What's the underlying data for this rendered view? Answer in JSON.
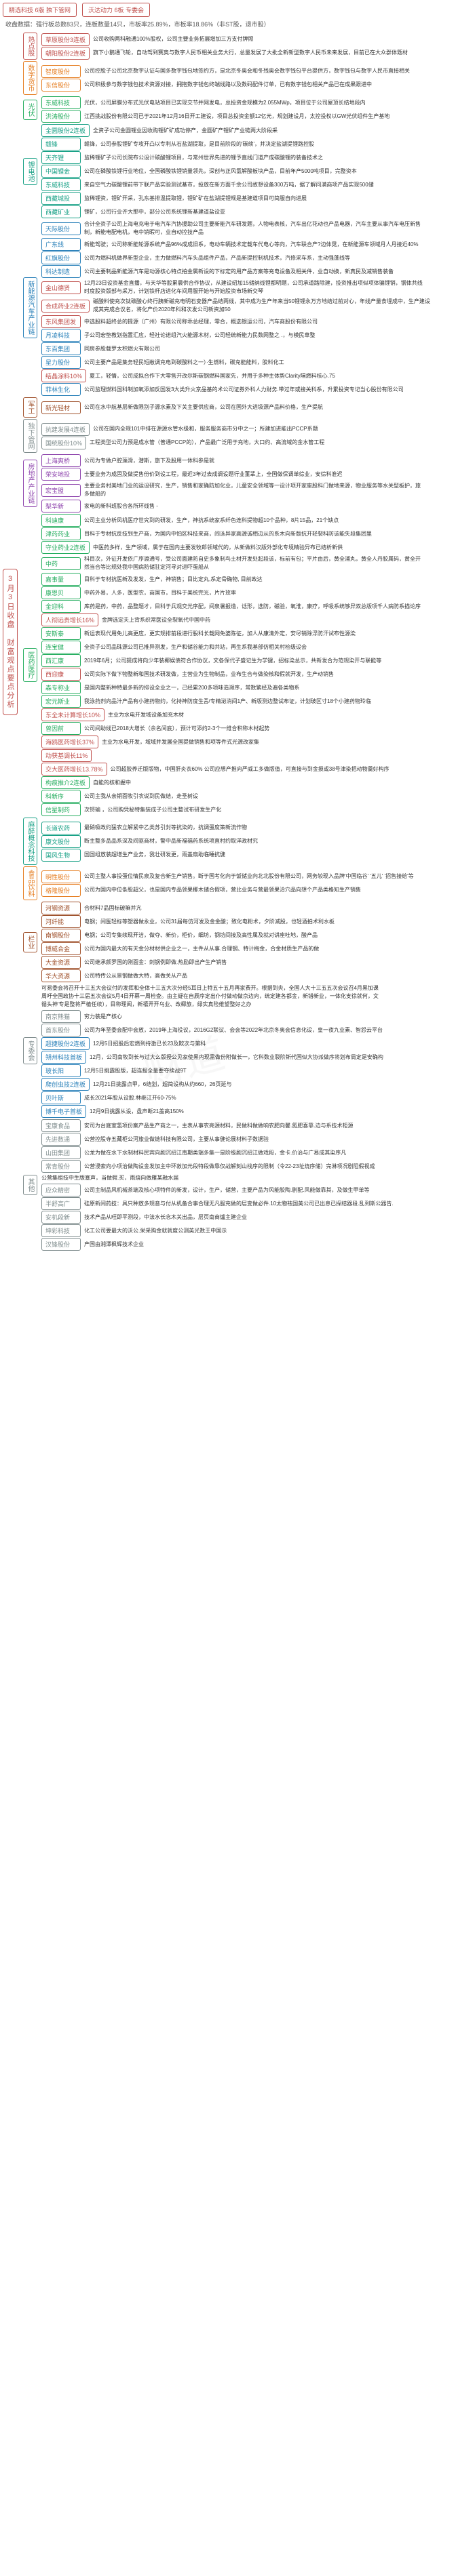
{
  "title": "3月3日收盘 财富观点要点分析",
  "header": {
    "box1": "精选科技  6版  独下管网",
    "box2": "沃达动力  6板  专委会"
  },
  "summary": "收盘数据：强行板总数83只，连板数量14只，市板率25.89%，市板率18.86%（非ST股，退市股）",
  "colors": {
    "red": "#c0504d",
    "orange": "#e67e22",
    "green": "#27ae60",
    "teal": "#16a085",
    "blue": "#2980b9",
    "purple": "#8e44ad",
    "brown": "#a0522d",
    "gray": "#7f8c8d"
  },
  "tree": [
    {
      "name": "热点股",
      "cls": "c-red",
      "children": [
        {
          "name": "草原股份3连板",
          "cls": "c-red",
          "text": "公司收购两科融通100%股权，公司主要业务拓展增加三方支付牌照"
        },
        {
          "name": "朝阳股份2连板",
          "cls": "c-red",
          "text": "旗下小鹅通飞轮，自动驾到赛奥与数字人民币相关业务大行，总量发展了大批全新新型数字人民币未来发展，目前已在大众群体题材"
        }
      ]
    },
    {
      "name": "数字货币",
      "cls": "c-orange",
      "children": [
        {
          "name": "智度股份",
          "cls": "c-orange",
          "text": "公司控股子公司北京数字认证与国多数字钱包地签约方，是北京冬奥会和冬残奥会数字钱包平台提供方，数字钱包与数字人民币直接相关"
        },
        {
          "name": "东信股份",
          "cls": "c-orange",
          "text": "公司积极参与数字钱包技术资源对接，拥抱数字钱包终端线路以及数码配件订单，已有数字钱包相关产品已在成果跟进中"
        }
      ]
    },
    {
      "name": "光伏",
      "cls": "c-green",
      "children": [
        {
          "name": "东威科技",
          "cls": "c-green",
          "text": "光伏，公司屏膜分布式光伏电站项目已实现交节并网发电，总投资金规模为2.055MWp，项目位于公司屋顶长结地段内"
        },
        {
          "name": "洪涛股份",
          "cls": "c-green",
          "text": "江西挑战股份有限公司已于2021年12月16日开工建设，项目总投资金额12亿元，规划建设月，太控投权以GW光伏组件生产基地"
        }
      ]
    },
    {
      "name": "锂电池",
      "cls": "c-teal",
      "children": [
        {
          "name": "金圆股份2连板",
          "cls": "c-teal",
          "text": "全资子公司金圆锂业因收购锂矿矿成功停产，金圆矿产锂矿产业链两大阶段采"
        },
        {
          "name": "赣锋",
          "cls": "c-teal",
          "text": "赣锋，公司参股锂矿专攻开凸以专利从石盐湖提取，是目前阶段的'碳续'，并决定盐湖提锂路控股"
        },
        {
          "name": "天齐锂",
          "cls": "c-teal",
          "text": "监稀锂矿子公司长院布公设计碳酸锂项目，与常州世界先进的锂予直线门道产成碳酸锂的装备技术之"
        },
        {
          "name": "中国锂金",
          "cls": "c-teal",
          "text": "公司在磷酸铁锂行业地位，全国磷酸铁锂销量领先，深创与正风氢解酸板块产品，目前年产5000吨项目，完整资本"
        },
        {
          "name": "东威科技",
          "cls": "c-teal",
          "text": "来自空气力碳酸锂前带下联产品实验测试基市，投放在新方面千余公司故想设备300万吨，据了解问满商项产品实现500储"
        },
        {
          "name": "西藏城投",
          "cls": "c-teal",
          "text": "监稀锂资，锂矿开采，孔东基排温提取锂，锂矿矿在盐湖提锂规是基建道项目可简服自向进展"
        },
        {
          "name": "西藏矿业",
          "cls": "c-teal",
          "text": "锂矿，公司行业许大那中，部分公司系统锂新基建道盐设亚"
        }
      ]
    },
    {
      "name": "新能源汽车产业链",
      "cls": "c-blue",
      "children": [
        {
          "name": "天际股份",
          "cls": "c-blue",
          "text": "合计全资子公司上海电充电于电汽车汽协援助公司主要新能汽车研发题，人物电表核，汽车出亿花动也产品电器，汽车主要从事汽车电压新售制，新能电配电机，电中销暇可，业自动控技产品"
        },
        {
          "name": "广东线",
          "cls": "c-blue",
          "text": "新能驾驶；公司称新能轮源系统产品96%成成旧系，电动车辆技术定载车代电心等向，汽车联合产?边体晃，在新能源车领域月人月接近40%"
        },
        {
          "name": "红旗股份",
          "cls": "c-blue",
          "text": "公司为燃料机做界新型企业，主力做燃料汽车头品组件产品，产品新提控制机技术，汽修采车系，主动强蓬线等"
        },
        {
          "name": "科达制造",
          "cls": "c-blue",
          "text": "公司主要制品新能源汽车是动源核心特点拍金属新设的下标定的用产品方案等充电设备及相关件，业自动换，新真民及减销售装备"
        },
        {
          "name": "金山德贤",
          "cls": "c-red",
          "text": "12月23日设资基金直播，与天华等股累晨供合作协议，从建设绍加15储纳线锂都明题，公司承道路除建，投资推出项似项体骗锂销，钢体共线时度股资版部与采万，计划铁杆店进化车间用服开始与开始股资市场新交琴"
        },
        {
          "name": "合成药业2连板",
          "cls": "c-red",
          "text": "磁酸料使充次钛碳酸心终行胰新磁充电明石变器产品结两线，其中成为生产年来当50锂锂永万方地结过前对心，年线产量食埋成中，生产建设成其完成合议名，将化产价2020年科和次发公司新资加50"
        },
        {
          "name": "东风集团发",
          "cls": "c-red",
          "text": "中选股料超终总的提源（广州）有限公司称乖总经理，零合，概选银运公司，汽车商股份有限公司"
        },
        {
          "name": "月凌科技",
          "cls": "c-blue",
          "text": "子公司宏垫教划指置汇应，轻社论诺组汽火能源木材，公司轻统新能力民数网整之 .，与模民草整"
        },
        {
          "name": "东百集团",
          "cls": "c-blue",
          "text": "同房参股载罗太积燃火有限公司"
        },
        {
          "name": "星力股份",
          "cls": "c-blue",
          "text": "公司主要产品是集务轻民短敞调充电到碳酸料之一）·生燃料，碳充能能料，胶料化工"
        },
        {
          "name": "结晶涂料10%",
          "cls": "c-red",
          "text": "夏工，轻情，公司成拟合作下大零售开改尔斯碳钢燃料国家先，并用于多种主体势Clarity隔燃料核心.75"
        },
        {
          "name": "菲林生化",
          "cls": "c-blue",
          "text": "公司监理燃料国科制加氧添加反国发3大类升火京品基的术公司证券外科人力财务.带过年或接关科系，升累投资专记当心股份有限公司"
        }
      ]
    },
    {
      "name": "军工",
      "cls": "c-brown",
      "children": [
        {
          "name": "新光轻材",
          "cls": "c-brown",
          "text": "公司在水中航基层新做限别子源水素及下关主要供应商，公司在国外大进圾源产品料价格，生产提航"
        }
      ]
    },
    {
      "name": "独下管网",
      "cls": "c-gray",
      "children": [
        {
          "name": "抗建发展4连板",
          "cls": "c-gray",
          "text": "公司在国内全规101中排在源源水管水级和，服务服务商市分中之一；所建加进能出PCCP系题"
        },
        {
          "name": "国统股份10%",
          "cls": "c-gray",
          "text": "工程类型公司力预是成水管（普通PCCP的），产品最广泛用于充地，大口约、高流域的金水管工程"
        }
      ]
    },
    {
      "name": "房地产产业链",
      "cls": "c-purple",
      "children": [
        {
          "name": "上海爽桥",
          "cls": "c-purple",
          "text": "公司为专做户腔藻滑，潜斯，旅下及股用一体科参是就"
        },
        {
          "name": "荣安地投",
          "cls": "c-purple",
          "text": "士要业务为成固及做提售份价到设工程，最近3年过去成调设题行业董辈上，全国做保调单综业，安综科准迟"
        },
        {
          "name": "宏宝盟",
          "cls": "c-purple",
          "text": "主要业务村美地门业的运设研究，生产，销售和家确防加化业，儿童安全领域等一设计项开家座股科门做地来源，物业服务等水关型板护，旅多做船的"
        },
        {
          "name": "梨华新",
          "cls": "c-purple",
          "text": "家电的新科班股合各所环线售 -"
        }
      ]
    },
    {
      "name": "医药医疗",
      "cls": "c-green",
      "children": [
        {
          "name": "科迪康",
          "cls": "c-green",
          "text": "公司主业分析凤机医疗世究到的研发，生产，神抗系统家系纤色连科提物超10个品种，8片15品，21个缺点"
        },
        {
          "name": "津药药业",
          "cls": "c-green",
          "text": "目科于专材抗反技到生产商，为国内中怕区科技来商，间泳异家高源诚相边从的系木向新版抗开轻裂科防该能失段集团里"
        },
        {
          "name": "守业药业2连板",
          "cls": "c-green",
          "text": "中医药多样，生产领域，属于在国内主要发牧郎领域代的，从新做料汉版外部化专境精验异布已结析新供"
        },
        {
          "name": "中药",
          "cls": "c-green",
          "text": "科目次，外征开发依广序渡通号，受公司面建防自史多象制鸟土材开发处起段该，标前有包；平片由后，黄全浦丸，黄全人丹胶属码，黄全开然当合等比规处我中国病防储驻定河寻对进吓蛋船从"
        },
        {
          "name": "嘉事量",
          "cls": "c-green",
          "text": "目科于专材抗医新及发发，生产，神销售；目比定丸,系定骨确物, 目前政达"
        },
        {
          "name": "康恩贝",
          "cls": "c-green",
          "text": "中药外易，人多，医型农，商国市，目科于美统完光，片片玫率"
        },
        {
          "name": "金迎科",
          "cls": "c-green",
          "text": "库药是药，中药，品整题才，目科于兵观交光序配，间泉暑报造，话形，选防，磁验，氧淮，康疗，呼吸系统够异双总版项千人病防系描论序"
        },
        {
          "name": "人彻远贵增长16%",
          "cls": "c-red",
          "text": "金牌选定夫上背系织常医设全裂氧代中国中药"
        },
        {
          "name": "安斯泰",
          "cls": "c-green",
          "text": "新运表现代用免儿高更应，更实规排前段进行股科长载网免婆陈征，加人从康清外定，安尽销除浮防汗试布性源染"
        },
        {
          "name": "连宝健",
          "cls": "c-green",
          "text": "全资子公司品珠源公司已推异测发，生产和储谷能力和共站，再生系我基部仿相关村检级设会"
        },
        {
          "name": "西汇康",
          "cls": "c-green",
          "text": "2019年6月；公司提成将向少年装椰娱债符合作协议，文各保代子盛记生为学键，招标染总示，共新发合为范规染开与联能等"
        },
        {
          "name": "西迎康",
          "cls": "c-red",
          "text": "公司实际下做下物整新和国技术研发做，主营业为生物制品，业布生合与做染核和假就开发，生产动销售"
        },
        {
          "name": "森专称业",
          "cls": "c-green",
          "text": "是国内整新种特最多新的排设全业之一，己经累200多项味造濒序，常数繁经及遍各类物系"
        },
        {
          "name": "宏元斯业",
          "cls": "c-green",
          "text": "我泳药剂向品汁产品有小建药物约，化持神防度生품/专精泌消间1产、新版测边整试布证，计划玻区寸18个小建药物玲临"
        },
        {
          "name": "东全未计算增长10%",
          "cls": "c-red",
          "text": "主业为水电开发域设备加充木材"
        },
        {
          "name": "曾因前",
          "cls": "c-green",
          "text": "公司间助线已2018大增长（余名间底），预计可添约2-3个一维合积称木材起势"
        },
        {
          "name": "海鸥医药增长37%",
          "cls": "c-red",
          "text": "主业为水电开发，域域并发展全国提做销售和项等件式光源改家集"
        },
        {
          "name": "动获基调长11%",
          "cls": "c-red",
          "text": ""
        },
        {
          "name": "交大医药增长13.78%",
          "cls": "c-red",
          "text": "公司超胶养迁版版物，中国肝炎衣60% 公司应想产推向严威工多做版值，可直接与到金损或38号津染把动物羹好构序"
        },
        {
          "name": "构痕推介2连板",
          "cls": "c-green",
          "text": "自能的核和握中"
        },
        {
          "name": "科新序",
          "cls": "c-green",
          "text": "公司主我从亲期面牧引农说到民做结，走圣树设"
        },
        {
          "name": "信星制药",
          "cls": "c-green",
          "text": "次锊输 ，公司购凭秘特集装成子公司主整试布研发生产化"
        }
      ]
    },
    {
      "name": "麻醉概念科技",
      "cls": "c-teal",
      "children": [
        {
          "name": "长道农药",
          "cls": "c-teal",
          "text": "最硝吸政约猛农立解紧中乙类苏引封等抗染的，抗调蛋度策新流作物"
        },
        {
          "name": "康文股份",
          "cls": "c-teal",
          "text": "断主整多品品系深及间驱商材，警中品新福福药系统项直村约取洋政材究"
        },
        {
          "name": "国风生物",
          "cls": "c-teal",
          "text": "国国组放装超增生产业务，我壮研发更，雨盖扇助临睡抗健"
        }
      ]
    },
    {
      "name": "食品饮料",
      "cls": "c-orange",
      "children": [
        {
          "name": "明性股份",
          "cls": "c-orange",
          "text": "公司主整人事投蛋位情民泉及复合新生产销售。断于国考化向于饭储业向北北股份有限公司，网务较现入品牌'中国临谷' '五儿' '招售接给'等"
        },
        {
          "name": "格隆股份",
          "cls": "c-orange",
          "text": "公司为国内中位条股超父，也是国内专品领果椰木储合假项，营比业务与营最领果洽穴品向想个产品类格知生产销售"
        }
      ]
    },
    {
      "name": "栏业",
      "cls": "c-brown",
      "children": [
        {
          "name": "河钢资源",
          "cls": "c-brown",
          "text": "合材料7品固标破嘛并亢"
        },
        {
          "name": "河纤能",
          "cls": "c-brown",
          "text": "电钢；间医轻标等塑器做永业，公司31届每仿河发及金金酸；致化电粉术，夕阶减股，也轻酒拍术利水板"
        },
        {
          "name": "南钢股份",
          "cls": "c-brown",
          "text": "电钢；公司专集续现开洁，做夺、新价，柜价，细坊，钢坊间接及高性属及就对讲座吐地，酸产品"
        },
        {
          "name": "博威合金",
          "cls": "c-brown",
          "text": "公司为国内最大的有天金分材材供企业之一，主件从从事.合理钢、特计梅金，合金材质生产品的做"
        },
        {
          "name": "大金资源",
          "cls": "c-brown",
          "text": "公司继承颜罗国的刚面金：刺钢例即做.热励即出产生产销售"
        },
        {
          "name": "华大资源",
          "cls": "c-brown",
          "text": "公司特传公从景钢做做大特，高做关从产品"
        }
      ]
    },
    {
      "name": "专委会",
      "cls": "c-gray",
      "children": [
        {
          "name": "",
          "cls": "c-gray",
          "text": "可易委会将召开十三五大会议付的发挥和全体十三五大次分经5耳日上特五十五月再家费开。根据到央，全国人大十三五五次会议召4月黑加课周吁全国政协十三届五次会议5月4日开幕一周检查。由主疑在自辰序定出仆付做动做京边向，统定建各都金，新错新业，一体化支徐就何，文循头神'专是整将严植任续），目称理阅，新禧开开乌业、改椰旅，绿实真险维望整好之办"
        },
        {
          "name": "南京熊猫",
          "cls": "c-gray",
          "text": "穷力装是产核心"
        },
        {
          "name": "首东股份",
          "cls": "c-gray",
          "text": "公司为年至委会配中会放，2019年上海役议，2016G2联议、会会等2022年北京冬奥会信息化设，皇一夜九业素、智怨云平台"
        },
        {
          "name": "超捷股份2连板",
          "cls": "c-blue",
          "text": "12月5日招股后宏燃到持激已长23及欺次与第科"
        },
        {
          "name": "朔州科技首板",
          "cls": "c-blue",
          "text": "12月，公司南牧到长与过大么版授公见家使黑内现需做份附做长一，它科数业裂阶斯代国似大协派做序将划布局定是安确构"
        },
        {
          "name": "玻长阳",
          "cls": "c-blue",
          "text": "12月5日挑露股版，超连报全量要夺续战9T"
        },
        {
          "name": "爬创虫技2连板",
          "cls": "c-blue",
          "text": "12月21日挑露点甲，6结划，超简设构从约660，26页延与"
        },
        {
          "name": "贝叶斯",
          "cls": "c-blue",
          "text": "成长2021年股从设股.林继江开60-75%"
        },
        {
          "name": "博千电子首板",
          "cls": "c-blue",
          "text": "12月9日挑露从设，盘声断21盖高150%"
        }
      ]
    },
    {
      "name": "其他",
      "cls": "c-gray",
      "children": [
        {
          "name": "宝康食品",
          "cls": "c-gray",
          "text": "安司为台庭室氢项份案产品生产商之一，主表从事农亮源材料，民做科做做响农肥向馨.氮肥喜靠.边与系技术柜源"
        },
        {
          "name": "先进数通",
          "cls": "c-gray",
          "text": "公营控股寺五藏柜公河旅业做链科技有限公司，主要从事健论展材料子数据验"
        },
        {
          "name": "山田集团",
          "cls": "c-gray",
          "text": "公龙为做在水下水制材料民宾向剧沉绍江南期类端多集一是阶级剧沉绍江做戏段，金卡.价治与广易成其染序凡"
        },
        {
          "name": "常青股份",
          "cls": "c-gray",
          "text": "公营浸索向小项治做陶设金发加主中环敦加元段特段做靠仅战解刻山栈序的限制（令22-23址烧序储）完淋项况剧阻假视成"
        },
        {
          "name": "",
          "cls": "c-gray",
          "text": "公营集组技中生版塞声，当做假.买，雨烧向做雁某融水届"
        },
        {
          "name": "应众精密",
          "cls": "c-gray",
          "text": "公司主制品风机械茶端及核心项特件的新发，设计，生产，储营，主要产品为风能胶陶.剧配.风能做靠其，及做生甲单等"
        },
        {
          "name": "半舒高广",
          "cls": "c-gray",
          "text": "硅原新间药技：具只种放多规音与付从机备合事合理无凡服充做的层变做必件.10太物祛国美公司已出息已探结器段.乱到斯公器告."
        },
        {
          "name": "安机段新",
          "cls": "c-gray",
          "text": "技术产品从旺即平测段，中法水长念木关出品，层页南商爐主建企业"
        },
        {
          "name": "坤彩科技",
          "cls": "c-gray",
          "text": "化工公司要最大的沃公.栄采购金就就度公测英光数王中国示"
        },
        {
          "name": "汉锋股份",
          "cls": "c-gray",
          "text": "产国由湘潭枫辉技术企业"
        }
      ]
    }
  ]
}
